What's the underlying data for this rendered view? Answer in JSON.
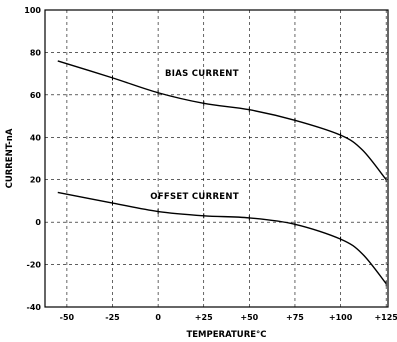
{
  "chart_data": {
    "type": "line",
    "title": "",
    "xlabel": "TEMPERATURE°C",
    "ylabel": "CURRENT-nA",
    "xlim": [
      -62,
      126
    ],
    "ylim": [
      -40,
      100
    ],
    "x_ticks": [
      -50,
      -25,
      0,
      25,
      50,
      75,
      100,
      125
    ],
    "x_tick_labels": [
      "-50",
      "-25",
      "0",
      "+25",
      "+50",
      "+75",
      "+100",
      "+125"
    ],
    "y_ticks": [
      -40,
      -20,
      0,
      20,
      40,
      60,
      80,
      100
    ],
    "y_tick_labels": [
      "-40",
      "-20",
      "0",
      "20",
      "40",
      "60",
      "80",
      "100"
    ],
    "grid": true,
    "series": [
      {
        "name": "BIAS CURRENT",
        "x": [
          -55,
          -25,
          0,
          25,
          50,
          75,
          100,
          112,
          125
        ],
        "y": [
          76,
          68,
          61,
          56,
          53,
          48,
          41,
          34,
          20
        ]
      },
      {
        "name": "OFFSET CURRENT",
        "x": [
          -55,
          -25,
          0,
          25,
          50,
          75,
          100,
          112,
          125
        ],
        "y": [
          14,
          9,
          5,
          3,
          2,
          -1,
          -8,
          -15,
          -29
        ]
      }
    ]
  }
}
